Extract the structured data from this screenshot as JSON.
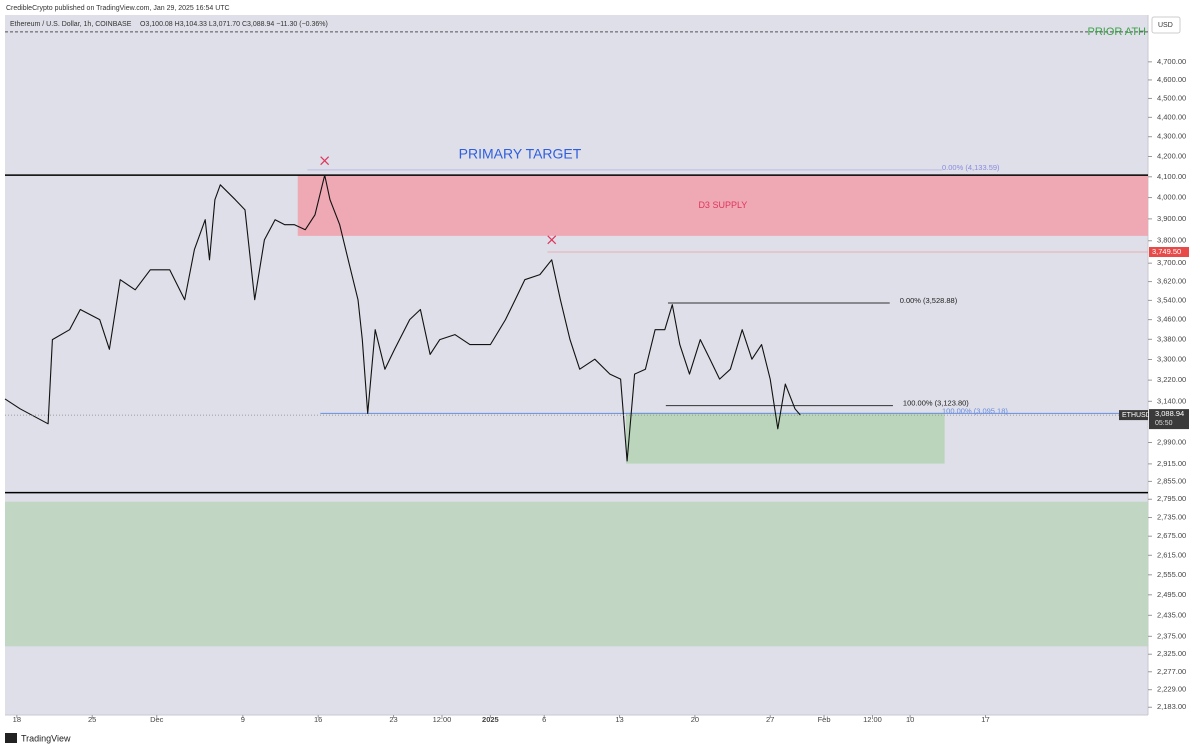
{
  "chart_data": {
    "type": "line",
    "published": "CredibleCrypto published on TradingView.com, Jan 29, 2025 16:54 UTC",
    "title": "Ethereum / U.S. Dollar, 1h, COINBASE",
    "ohlc": "O3,100.08 H3,104.33 L3,071.70 C3,088.94 −11.30 (−0.36%)",
    "currency": "USD",
    "brand": "TradingView",
    "log_scale": true,
    "x": [
      -1.1,
      0.3,
      2.9,
      3.3,
      4.9,
      5.9,
      7.7,
      8.6,
      9.6,
      11.0,
      12.4,
      14.2,
      15.6,
      16.5,
      17.5,
      17.9,
      18.4,
      18.9,
      20.3,
      21.2,
      22.1,
      23.0,
      24.0,
      24.9,
      25.8,
      26.8,
      27.7,
      28.6,
      29.1,
      30.0,
      30.9,
      31.7,
      32.1,
      32.6,
      33.3,
      34.2,
      35.1,
      36.5,
      37.5,
      38.4,
      39.3,
      40.7,
      42.1,
      44.0,
      45.4,
      46.3,
      47.2,
      48.6,
      49.7,
      50.5,
      51.4,
      52.3,
      53.7,
      55.1,
      56.1,
      56.7,
      57.4,
      58.4,
      59.3,
      60.2,
      60.9,
      61.6,
      62.5,
      63.5,
      64.4,
      65.3,
      66.3,
      67.4,
      68.3,
      69.2,
      70.0,
      70.7,
      71.4,
      72.3,
      72.8
    ],
    "series": [
      {
        "name": "ETHUSD",
        "color": "#111111",
        "values": [
          3149,
          3112,
          3057,
          3379,
          3419,
          3502,
          3460,
          3340,
          3628,
          3585,
          3671,
          3671,
          3543,
          3760,
          3896,
          3715,
          3990,
          4061,
          3990,
          3942,
          3543,
          3804,
          3896,
          3873,
          3873,
          3850,
          3919,
          4108,
          3990,
          3873,
          3693,
          3543,
          3379,
          3095,
          3419,
          3262,
          3340,
          3460,
          3502,
          3320,
          3379,
          3399,
          3359,
          3359,
          3460,
          3543,
          3628,
          3650,
          3715,
          3543,
          3379,
          3262,
          3301,
          3243,
          3224,
          2925,
          3243,
          3262,
          3419,
          3419,
          3522,
          3359,
          3243,
          3379,
          3301,
          3224,
          3262,
          3419,
          3301,
          3359,
          3224,
          3039,
          3205,
          3112,
          3089
        ]
      }
    ],
    "last_price": {
      "value": 3088.94,
      "label": "3,088.94"
    },
    "countdown": "05:50",
    "xlim": [
      -1.1,
      105.1
    ],
    "xticks": [
      {
        "value": 0,
        "label": "18"
      },
      {
        "value": 7,
        "label": "25"
      },
      {
        "value": 13,
        "label": "Dec"
      },
      {
        "value": 21,
        "label": "9"
      },
      {
        "value": 28,
        "label": "16"
      },
      {
        "value": 35,
        "label": "23"
      },
      {
        "value": 39.5,
        "label": "12:00"
      },
      {
        "value": 44,
        "label": "2025"
      },
      {
        "value": 49,
        "label": "6"
      },
      {
        "value": 56,
        "label": "13"
      },
      {
        "value": 63,
        "label": "20"
      },
      {
        "value": 70,
        "label": "27"
      },
      {
        "value": 75,
        "label": "Feb"
      },
      {
        "value": 79.5,
        "label": "12:00"
      },
      {
        "value": 83,
        "label": "10"
      },
      {
        "value": 90,
        "label": "17"
      }
    ],
    "ylim": [
      2163,
      4969
    ],
    "yticks": [
      {
        "value": 4700,
        "label": "4,700.00"
      },
      {
        "value": 4600,
        "label": "4,600.00"
      },
      {
        "value": 4500,
        "label": "4,500.00"
      },
      {
        "value": 4400,
        "label": "4,400.00"
      },
      {
        "value": 4300,
        "label": "4,300.00"
      },
      {
        "value": 4200,
        "label": "4,200.00"
      },
      {
        "value": 4100,
        "label": "4,100.00"
      },
      {
        "value": 4000,
        "label": "4,000.00"
      },
      {
        "value": 3900,
        "label": "3,900.00"
      },
      {
        "value": 3800,
        "label": "3,800.00"
      },
      {
        "value": 3700,
        "label": "3,700.00"
      },
      {
        "value": 3620,
        "label": "3,620.00"
      },
      {
        "value": 3540,
        "label": "3,540.00"
      },
      {
        "value": 3460,
        "label": "3,460.00"
      },
      {
        "value": 3380,
        "label": "3,380.00"
      },
      {
        "value": 3300,
        "label": "3,300.00"
      },
      {
        "value": 3220,
        "label": "3,220.00"
      },
      {
        "value": 3140,
        "label": "3,140.00"
      },
      {
        "value": 2990,
        "label": "2,990.00"
      },
      {
        "value": 2915,
        "label": "2,915.00"
      },
      {
        "value": 2855,
        "label": "2,855.00"
      },
      {
        "value": 2795,
        "label": "2,795.00"
      },
      {
        "value": 2735,
        "label": "2,735.00"
      },
      {
        "value": 2675,
        "label": "2,675.00"
      },
      {
        "value": 2615,
        "label": "2,615.00"
      },
      {
        "value": 2555,
        "label": "2,555.00"
      },
      {
        "value": 2495,
        "label": "2,495.00"
      },
      {
        "value": 2435,
        "label": "2,435.00"
      },
      {
        "value": 2375,
        "label": "2,375.00"
      },
      {
        "value": 2325,
        "label": "2,325.00"
      },
      {
        "value": 2277,
        "label": "2,277.00"
      },
      {
        "value": 2229,
        "label": "2,229.00"
      },
      {
        "value": 2183,
        "label": "2,183.00"
      }
    ],
    "zones": [
      {
        "x": [
          26.1,
          105.1
        ],
        "y": [
          3822,
          4108
        ],
        "color": "#f2a0ab",
        "label": "D3 SUPPLY",
        "label_color": "#e0345a"
      },
      {
        "x": [
          56.6,
          86.2
        ],
        "y": [
          2916,
          3098
        ],
        "color": "#b4d4b4"
      },
      {
        "x": [
          -1.1,
          105.1
        ],
        "y": [
          2347,
          2787
        ],
        "color": "#bcd6bc"
      }
    ],
    "levels": [
      {
        "level": 4108,
        "x": [
          -1.1,
          105.1
        ],
        "color": "#000000",
        "width": 1.5
      },
      {
        "level": 2817,
        "x": [
          -1.1,
          105.1
        ],
        "color": "#000000",
        "width": 1.5
      },
      {
        "level": 3095.18,
        "x": [
          28.2,
          105.1
        ],
        "color": "#6a8de0",
        "width": 1,
        "label": "100.00% (3,095.18)",
        "label_color": "#6a8de0"
      },
      {
        "level": 4133.59,
        "x": [
          27.0,
          86.0
        ],
        "color": "#a8a8e8",
        "width": 0.6,
        "label": "0.00% (4,133.59)",
        "label_color": "#8a8ae0"
      },
      {
        "level": 3528.88,
        "x": [
          60.5,
          81.1
        ],
        "color": "#333333",
        "width": 1,
        "label": "0.00% (3,528.88)",
        "label_color": "#222222"
      },
      {
        "level": 3123.8,
        "x": [
          60.3,
          81.4
        ],
        "color": "#333333",
        "width": 1,
        "label": "100.00% (3,123.80)",
        "label_color": "#222222"
      },
      {
        "level": 3749.5,
        "x": [
          49.3,
          105.1
        ],
        "color": "#e8a0a0",
        "width": 0.8,
        "tag": "3,749.50",
        "tag_color": "#e84a4a"
      },
      {
        "level": 4870,
        "x": [
          -1.1,
          105.1
        ],
        "color": "#555555",
        "width": 1,
        "dash": true,
        "label": "PRIOR ATH",
        "label_color": "#3fa34d"
      }
    ],
    "markers": [
      {
        "x": 28.6,
        "y": 4179
      },
      {
        "x": 49.7,
        "y": 3804
      }
    ],
    "marker_color": "#e0345a",
    "primary_target": "PRIMARY TARGET"
  }
}
